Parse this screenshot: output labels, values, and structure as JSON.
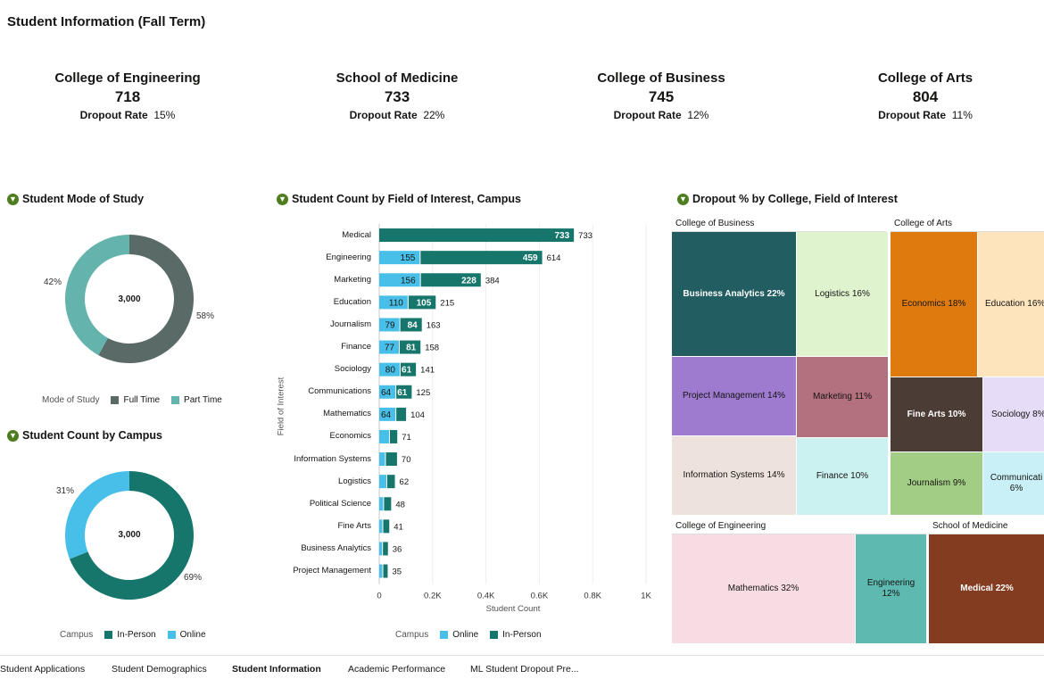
{
  "page": {
    "title": "Student Information (Fall Term)"
  },
  "kpis": [
    {
      "name": "College of Engineering",
      "value": "718",
      "rate_label": "Dropout Rate",
      "rate": "15%"
    },
    {
      "name": "School of Medicine",
      "value": "733",
      "rate_label": "Dropout Rate",
      "rate": "22%"
    },
    {
      "name": "College of Business",
      "value": "745",
      "rate_label": "Dropout Rate",
      "rate": "12%"
    },
    {
      "name": "College of Arts",
      "value": "804",
      "rate_label": "Dropout Rate",
      "rate": "11%"
    }
  ],
  "panels": {
    "mode_title": "Student Mode of Study",
    "campus_title": "Student Count by Campus",
    "field_title": "Student Count by Field of Interest, Campus",
    "dropout_title": "Dropout % by College, Field of Interest"
  },
  "colors": {
    "full_time": "#5a6b67",
    "part_time": "#64b3ad",
    "in_person": "#17766c",
    "online": "#48bfe8"
  },
  "chart_data": [
    {
      "type": "pie",
      "title": "Student Mode of Study",
      "center_label": "3,000",
      "legend_title": "Mode of Study",
      "slices": [
        {
          "name": "Full Time",
          "value": 58,
          "label": "58%"
        },
        {
          "name": "Part Time",
          "value": 42,
          "label": "42%"
        }
      ]
    },
    {
      "type": "pie",
      "title": "Student Count by Campus",
      "center_label": "3,000",
      "legend_title": "Campus",
      "slices": [
        {
          "name": "In-Person",
          "value": 69,
          "label": "69%"
        },
        {
          "name": "Online",
          "value": 31,
          "label": "31%"
        }
      ]
    },
    {
      "type": "bar",
      "orientation": "horizontal",
      "stacked": true,
      "title": "Student Count by Field of Interest, Campus",
      "xlabel": "Student Count",
      "ylabel": "Field of Interest",
      "xlim": [
        0,
        1000
      ],
      "xticks": [
        "0",
        "0.2K",
        "0.4K",
        "0.6K",
        "0.8K",
        "1K"
      ],
      "legend_title": "Campus",
      "categories": [
        "Medical",
        "Engineering",
        "Marketing",
        "Education",
        "Journalism",
        "Finance",
        "Sociology",
        "Communications",
        "Mathematics",
        "Economics",
        "Information Systems",
        "Logistics",
        "Political Science",
        "Fine Arts",
        "Business Analytics",
        "Project Management"
      ],
      "series": [
        {
          "name": "Online",
          "values": [
            0,
            155,
            156,
            110,
            79,
            77,
            80,
            64,
            64,
            40,
            25,
            30,
            18,
            15,
            14,
            15
          ]
        },
        {
          "name": "In-Person",
          "values": [
            733,
            459,
            228,
            105,
            84,
            81,
            61,
            61,
            40,
            31,
            45,
            32,
            30,
            26,
            22,
            20
          ]
        }
      ],
      "seg_labels": {
        "Online": [
          "",
          "155",
          "156",
          "110",
          "79",
          "77",
          "80",
          "64",
          "64",
          "",
          "",
          "",
          "",
          "",
          "",
          ""
        ],
        "In-Person": [
          "733",
          "459",
          "228",
          "105",
          "84",
          "81",
          "61",
          "61",
          "",
          "",
          "",
          "",
          "",
          "",
          "",
          ""
        ]
      },
      "totals": [
        "733",
        "614",
        "384",
        "215",
        "163",
        "158",
        "141",
        "125",
        "104",
        "71",
        "70",
        "62",
        "48",
        "41",
        "36",
        "35"
      ]
    },
    {
      "type": "treemap",
      "title": "Dropout % by College, Field of Interest",
      "groups": [
        {
          "name": "College of Business",
          "items": [
            {
              "label": "Business Analytics 22%",
              "value": 22
            },
            {
              "label": "Logistics 16%",
              "value": 16
            },
            {
              "label": "Project Management 14%",
              "value": 14
            },
            {
              "label": "Marketing 11%",
              "value": 11
            },
            {
              "label": "Information Systems 14%",
              "value": 14
            },
            {
              "label": "Finance 10%",
              "value": 10
            }
          ]
        },
        {
          "name": "College of Arts",
          "items": [
            {
              "label": "Economics 18%",
              "value": 18
            },
            {
              "label": "Education 16%",
              "value": 16
            },
            {
              "label": "Fine Arts 10%",
              "value": 10
            },
            {
              "label": "Sociology 8%",
              "value": 8
            },
            {
              "label": "Journalism 9%",
              "value": 9
            },
            {
              "label": "Communicati 6%",
              "value": 6
            }
          ]
        },
        {
          "name": "College of Engineering",
          "items": [
            {
              "label": "Mathematics 32%",
              "value": 32
            },
            {
              "label": "Engineering 12%",
              "value": 12
            }
          ]
        },
        {
          "name": "School of Medicine",
          "items": [
            {
              "label": "Medical 22%",
              "value": 22
            }
          ]
        }
      ]
    }
  ],
  "tabs": [
    "Student Applications",
    "Student Demographics",
    "Student Information",
    "Academic Performance",
    "ML Student Dropout Pre..."
  ]
}
